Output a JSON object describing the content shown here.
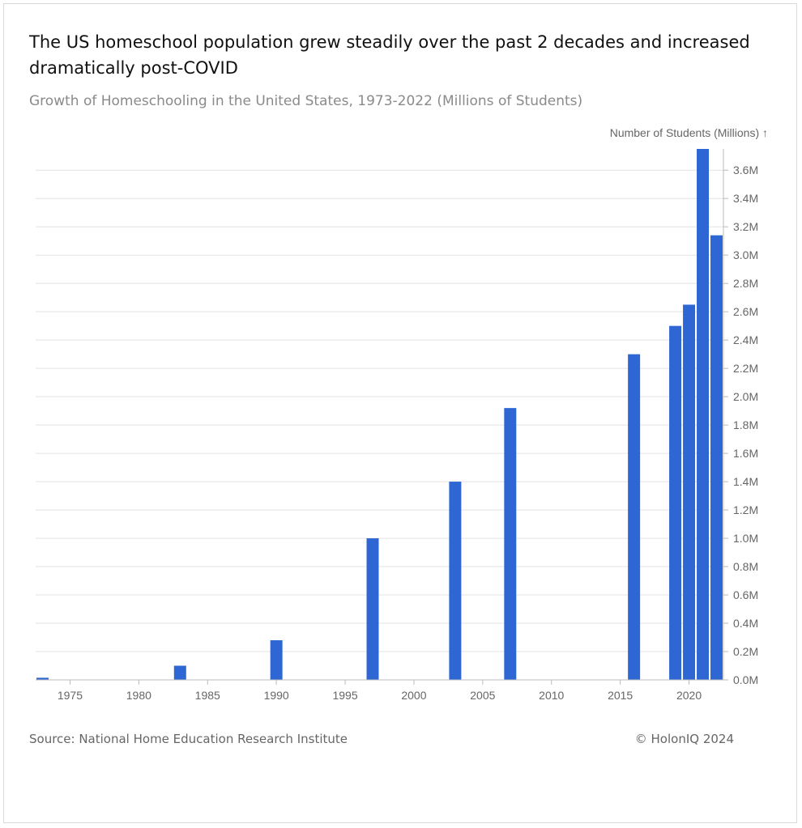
{
  "header": {
    "title": "The US homeschool population grew steadily over the past 2 decades and increased dramatically post-COVID",
    "subtitle": "Growth of Homeschooling in the United States, 1973-2022 (Millions of Students)"
  },
  "footer": {
    "source": "Source: National Home Education Research Institute",
    "copyright": "© HolonIQ 2024"
  },
  "colors": {
    "bar": "#2e67d3",
    "grid": "#e3e3e3",
    "axis": "#bbbbbb"
  },
  "chart_data": {
    "type": "bar",
    "title": "Growth of Homeschooling in the United States, 1973-2022 (Millions of Students)",
    "ylabel": "Number of Students (Millions) ↑",
    "xlabel": "",
    "x": [
      1973,
      1983,
      1990,
      1997,
      2003,
      2007,
      2016,
      2019,
      2020,
      2021,
      2022
    ],
    "values": [
      0.015,
      0.1,
      0.28,
      1.0,
      1.4,
      1.92,
      2.3,
      2.5,
      2.65,
      3.75,
      3.14
    ],
    "xlim": [
      1973,
      2023
    ],
    "ylim": [
      0,
      3.75
    ],
    "x_ticks": [
      1975,
      1980,
      1985,
      1990,
      1995,
      2000,
      2005,
      2010,
      2015,
      2020
    ],
    "y_ticks": [
      0.0,
      0.2,
      0.4,
      0.6,
      0.8,
      1.0,
      1.2,
      1.4,
      1.6,
      1.8,
      2.0,
      2.2,
      2.4,
      2.6,
      2.8,
      3.0,
      3.2,
      3.4,
      3.6
    ],
    "y_tick_labels": [
      "0.0M",
      "0.2M",
      "0.4M",
      "0.6M",
      "0.8M",
      "1.0M",
      "1.2M",
      "1.4M",
      "1.6M",
      "1.8M",
      "2.0M",
      "2.2M",
      "2.4M",
      "2.6M",
      "2.8M",
      "3.0M",
      "3.2M",
      "3.4M",
      "3.6M"
    ],
    "x_tick_labels": [
      "1975",
      "1980",
      "1985",
      "1990",
      "1995",
      "2000",
      "2005",
      "2010",
      "2015",
      "2020"
    ],
    "grid": true,
    "y_axis_side": "right"
  }
}
